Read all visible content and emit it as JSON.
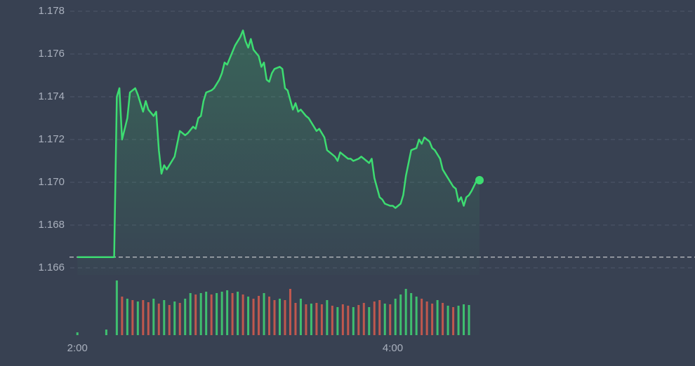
{
  "chart_data": {
    "type": "line",
    "x": [
      "2:00",
      "2:14",
      "2:15",
      "2:16",
      "2:17",
      "2:19",
      "2:20",
      "2:21",
      "2:22",
      "2:23",
      "2:25",
      "2:26",
      "2:27",
      "2:29",
      "2:30",
      "2:31",
      "2:32",
      "2:33",
      "2:34",
      "2:36",
      "2:37",
      "2:39",
      "2:41",
      "2:42",
      "2:44",
      "2:45",
      "2:46",
      "2:47",
      "2:48",
      "2:49",
      "2:51",
      "2:52",
      "2:54",
      "2:55",
      "2:56",
      "2:57",
      "2:59",
      "3:00",
      "3:02",
      "3:03",
      "3:04",
      "3:05",
      "3:06",
      "3:07",
      "3:09",
      "3:10",
      "3:11",
      "3:12",
      "3:13",
      "3:14",
      "3:15",
      "3:17",
      "3:18",
      "3:19",
      "3:20",
      "3:22",
      "3:23",
      "3:24",
      "3:25",
      "3:27",
      "3:28",
      "3:30",
      "3:31",
      "3:32",
      "3:34",
      "3:35",
      "3:37",
      "3:38",
      "3:39",
      "3:40",
      "3:41",
      "3:43",
      "3:44",
      "3:45",
      "3:47",
      "3:48",
      "3:49",
      "3:51",
      "3:52",
      "3:53",
      "3:55",
      "3:56",
      "3:57",
      "3:59",
      "4:00",
      "4:01",
      "4:03",
      "4:04",
      "4:05",
      "4:07",
      "4:09",
      "4:10",
      "4:11",
      "4:12",
      "4:14",
      "4:15",
      "4:16",
      "4:18",
      "4:19",
      "4:20",
      "4:22",
      "4:23",
      "4:24",
      "4:25",
      "4:26",
      "4:27",
      "4:28",
      "4:29",
      "4:30",
      "4:32",
      "4:33"
    ],
    "values": [
      1.1665,
      1.1665,
      1.174,
      1.1744,
      1.172,
      1.173,
      1.1742,
      1.1743,
      1.1744,
      1.1741,
      1.1733,
      1.1738,
      1.1734,
      1.1731,
      1.1733,
      1.1715,
      1.1704,
      1.1708,
      1.1706,
      1.171,
      1.1712,
      1.1724,
      1.1722,
      1.1723,
      1.1726,
      1.1725,
      1.173,
      1.1731,
      1.1738,
      1.1742,
      1.1743,
      1.1744,
      1.1748,
      1.1751,
      1.1756,
      1.1755,
      1.1761,
      1.1764,
      1.1768,
      1.1771,
      1.1766,
      1.1763,
      1.1767,
      1.1762,
      1.1759,
      1.1754,
      1.1756,
      1.1748,
      1.1747,
      1.1751,
      1.1753,
      1.1754,
      1.1753,
      1.1744,
      1.1743,
      1.1734,
      1.1737,
      1.1733,
      1.1734,
      1.1731,
      1.173,
      1.1726,
      1.1724,
      1.1725,
      1.1721,
      1.1715,
      1.1713,
      1.1712,
      1.171,
      1.1714,
      1.1713,
      1.1711,
      1.1711,
      1.171,
      1.1711,
      1.1712,
      1.1711,
      1.1709,
      1.1711,
      1.1702,
      1.1693,
      1.1692,
      1.169,
      1.1689,
      1.1689,
      1.1688,
      1.169,
      1.1694,
      1.1703,
      1.1715,
      1.1716,
      1.172,
      1.1718,
      1.1721,
      1.1719,
      1.1716,
      1.1715,
      1.1711,
      1.1706,
      1.1704,
      1.17,
      1.1698,
      1.1697,
      1.1691,
      1.1693,
      1.1689,
      1.1693,
      1.1694,
      1.1696,
      1.1701,
      1.1701
    ],
    "color": "#3ddc71",
    "baseline": 1.1665,
    "xlim": [
      "1:57",
      "5:55"
    ],
    "xticks": [
      "2:00",
      "4:00"
    ],
    "ylim": [
      1.166,
      1.178
    ],
    "yticks": [
      1.166,
      1.168,
      {
        "value": 1.17,
        "label": "1.170"
      },
      1.172,
      1.174,
      1.176,
      1.178
    ],
    "grid": true,
    "volume": {
      "x": [
        "2:00",
        "2:11",
        "2:15",
        "2:17",
        "2:19",
        "2:21",
        "2:23",
        "2:25",
        "2:27",
        "2:29",
        "2:31",
        "2:33",
        "2:35",
        "2:37",
        "2:39",
        "2:41",
        "2:43",
        "2:45",
        "2:47",
        "2:49",
        "2:51",
        "2:53",
        "2:55",
        "2:57",
        "2:59",
        "3:01",
        "3:03",
        "3:05",
        "3:07",
        "3:09",
        "3:11",
        "3:13",
        "3:15",
        "3:17",
        "3:19",
        "3:21",
        "3:23",
        "3:25",
        "3:27",
        "3:29",
        "3:31",
        "3:33",
        "3:35",
        "3:37",
        "3:39",
        "3:41",
        "3:43",
        "3:45",
        "3:47",
        "3:49",
        "3:51",
        "3:53",
        "3:55",
        "3:57",
        "3:59",
        "4:01",
        "4:03",
        "4:05",
        "4:07",
        "4:09",
        "4:11",
        "4:13",
        "4:15",
        "4:17",
        "4:19",
        "4:21",
        "4:23",
        "4:25",
        "4:27",
        "4:29"
      ],
      "values": [
        4,
        8,
        78,
        55,
        52,
        50,
        48,
        50,
        47,
        52,
        45,
        50,
        43,
        48,
        46,
        52,
        60,
        58,
        60,
        62,
        58,
        60,
        62,
        64,
        60,
        62,
        58,
        55,
        52,
        56,
        60,
        55,
        50,
        52,
        50,
        66,
        46,
        52,
        44,
        45,
        46,
        44,
        50,
        42,
        40,
        44,
        42,
        40,
        43,
        46,
        40,
        48,
        50,
        45,
        44,
        52,
        58,
        66,
        60,
        55,
        52,
        48,
        45,
        50,
        46,
        42,
        40,
        42,
        44,
        43
      ],
      "colors": [
        "#3fbf6f",
        "#3fbf6f",
        "#3fbf6f",
        "#c0584e",
        "#3fbf6f",
        "#c0584e",
        "#3fbf6f",
        "#c0584e",
        "#c0584e",
        "#3fbf6f",
        "#c0584e",
        "#3fbf6f",
        "#c0584e",
        "#3fbf6f",
        "#c0584e",
        "#3fbf6f",
        "#3fbf6f",
        "#c0584e",
        "#3fbf6f",
        "#3fbf6f",
        "#c0584e",
        "#3fbf6f",
        "#3fbf6f",
        "#3fbf6f",
        "#c0584e",
        "#3fbf6f",
        "#c0584e",
        "#3fbf6f",
        "#c0584e",
        "#c0584e",
        "#3fbf6f",
        "#c0584e",
        "#c0584e",
        "#3fbf6f",
        "#c0584e",
        "#c0584e",
        "#c0584e",
        "#3fbf6f",
        "#c0584e",
        "#3fbf6f",
        "#c0584e",
        "#c0584e",
        "#3fbf6f",
        "#c0584e",
        "#3fbf6f",
        "#c0584e",
        "#c0584e",
        "#3fbf6f",
        "#c0584e",
        "#c0584e",
        "#3fbf6f",
        "#c0584e",
        "#c0584e",
        "#3fbf6f",
        "#c0584e",
        "#3fbf6f",
        "#3fbf6f",
        "#3fbf6f",
        "#3fbf6f",
        "#3fbf6f",
        "#c0584e",
        "#c0584e",
        "#c0584e",
        "#3fbf6f",
        "#c0584e",
        "#3fbf6f",
        "#c0584e",
        "#3fbf6f",
        "#3fbf6f",
        "#3fbf6f"
      ],
      "ylim": [
        0,
        80
      ]
    }
  }
}
